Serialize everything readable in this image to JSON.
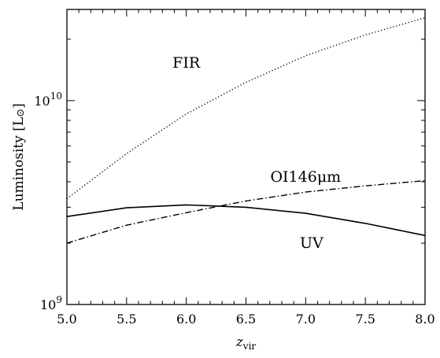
{
  "chart_data": {
    "type": "line",
    "xlabel": "z",
    "xlabel_sub": "vir",
    "ylabel": "Luminosity [L",
    "ylabel_symbol": "⊙",
    "ylabel_close": "]",
    "xlim": [
      5.0,
      8.0
    ],
    "ylim": [
      1000000000,
      28000000000
    ],
    "y_scale": "log",
    "x_ticks": [
      5.0,
      5.5,
      6.0,
      6.5,
      7.0,
      7.5,
      8.0
    ],
    "x_tick_labels": [
      "5.0",
      "5.5",
      "6.0",
      "6.5",
      "7.0",
      "7.5",
      "8.0"
    ],
    "y_major_ticks": [
      {
        "value": 1000000000,
        "base": "10",
        "exp": "9"
      },
      {
        "value": 10000000000,
        "base": "10",
        "exp": "10"
      }
    ],
    "y_minor_ticks": [
      2000000000,
      3000000000,
      4000000000,
      5000000000,
      6000000000,
      7000000000,
      8000000000,
      9000000000,
      20000000000
    ],
    "grid": false,
    "legend": "none (inline labels)",
    "series": [
      {
        "name": "FIR",
        "style": "dotted",
        "x": [
          5.0,
          5.5,
          6.0,
          6.5,
          7.0,
          7.5,
          8.0
        ],
        "y": [
          3300000000,
          5500000000,
          8600000000,
          12300000000,
          16600000000,
          21000000000,
          25500000000
        ]
      },
      {
        "name": "OI146μm",
        "style": "dashdot",
        "x": [
          5.0,
          5.5,
          6.0,
          6.5,
          7.0,
          7.5,
          8.0
        ],
        "y": [
          2000000000,
          2450000000,
          2820000000,
          3220000000,
          3560000000,
          3820000000,
          4050000000
        ]
      },
      {
        "name": "UV",
        "style": "solid",
        "x": [
          5.0,
          5.5,
          6.0,
          6.5,
          7.0,
          7.5,
          8.0
        ],
        "y": [
          2700000000,
          2980000000,
          3080000000,
          3000000000,
          2800000000,
          2500000000,
          2180000000
        ]
      }
    ],
    "series_labels": [
      {
        "series": 0,
        "text": "FIR",
        "x": 6.0,
        "y": 14500000000
      },
      {
        "series": 1,
        "text": "OI146μm",
        "x": 7.0,
        "y": 4000000000
      },
      {
        "series": 2,
        "text": "UV",
        "x": 7.05,
        "y": 1900000000
      }
    ]
  }
}
